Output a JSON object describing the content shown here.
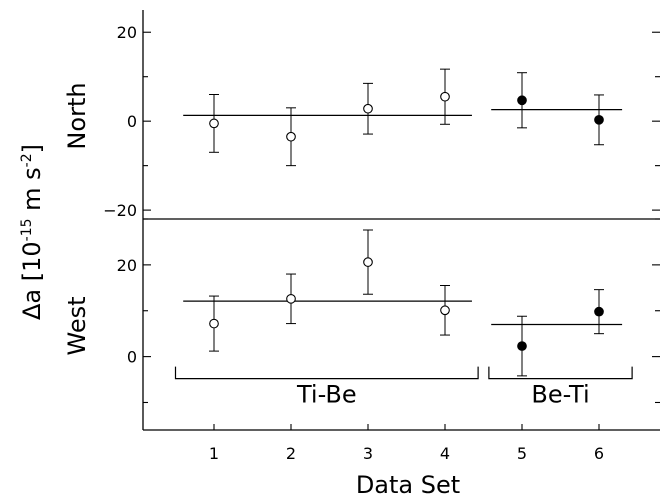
{
  "chart_data": {
    "type": "scatter",
    "xlabel": "Data Set",
    "ylabel": {
      "main": "Δa [10",
      "exp1": "-15",
      "mid": " m s",
      "exp2": "-2",
      "end": "]"
    },
    "x_ticks": [
      1,
      2,
      3,
      4,
      5,
      6
    ],
    "panels": [
      {
        "label": "North",
        "ylim": [
          -22,
          25
        ],
        "y_ticks": [
          -20,
          0,
          20
        ],
        "points": [
          {
            "x": 1,
            "y": -0.5,
            "err": 6.5,
            "filled": false
          },
          {
            "x": 2,
            "y": -3.5,
            "err": 6.5,
            "filled": false
          },
          {
            "x": 3,
            "y": 2.8,
            "err": 5.7,
            "filled": false
          },
          {
            "x": 4,
            "y": 5.5,
            "err": 6.2,
            "filled": false
          },
          {
            "x": 5,
            "y": 4.7,
            "err": 6.2,
            "filled": true
          },
          {
            "x": 6,
            "y": 0.3,
            "err": 5.6,
            "filled": true
          }
        ],
        "means": [
          {
            "x0": 0.6,
            "x1": 4.35,
            "y": 1.3
          },
          {
            "x0": 4.6,
            "x1": 6.3,
            "y": 2.6
          }
        ]
      },
      {
        "label": "West",
        "ylim": [
          -16,
          30
        ],
        "y_ticks": [
          0,
          20
        ],
        "points": [
          {
            "x": 1,
            "y": 7.2,
            "err": 6,
            "filled": false
          },
          {
            "x": 2,
            "y": 12.6,
            "err": 5.4,
            "filled": false
          },
          {
            "x": 3,
            "y": 20.6,
            "err": 7,
            "filled": false
          },
          {
            "x": 4,
            "y": 10.1,
            "err": 5.4,
            "filled": false
          },
          {
            "x": 5,
            "y": 2.3,
            "err": 6.5,
            "filled": true
          },
          {
            "x": 6,
            "y": 9.8,
            "err": 4.8,
            "filled": true
          }
        ],
        "means": [
          {
            "x0": 0.6,
            "x1": 4.35,
            "y": 12.1
          },
          {
            "x0": 4.6,
            "x1": 6.3,
            "y": 7.0
          }
        ],
        "groups": [
          {
            "label": "Ti-Be",
            "x0": 0.5,
            "x1": 4.43,
            "y": -4.8
          },
          {
            "label": "Be-Ti",
            "x0": 4.57,
            "x1": 6.43,
            "y": -4.8
          }
        ]
      }
    ]
  }
}
